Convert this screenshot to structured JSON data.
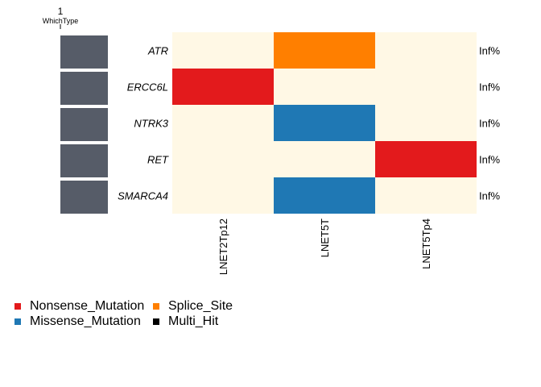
{
  "chart_data": {
    "type": "heatmap",
    "annotation": {
      "tick": "1",
      "label": "WhichType",
      "color": "#565c68"
    },
    "genes": [
      "ATR",
      "ERCC6L",
      "NTRK3",
      "RET",
      "SMARCA4"
    ],
    "samples": [
      "LNET2Tp12",
      "LNET5T",
      "LNET5Tp4"
    ],
    "row_labels_right": [
      "Inf%",
      "Inf%",
      "Inf%",
      "Inf%",
      "Inf%"
    ],
    "cells": [
      [
        "",
        "Splice_Site",
        ""
      ],
      [
        "Nonsense_Mutation",
        "",
        ""
      ],
      [
        "",
        "Missense_Mutation",
        ""
      ],
      [
        "",
        "",
        "Nonsense_Mutation"
      ],
      [
        "",
        "Missense_Mutation",
        ""
      ]
    ],
    "background_color": "#fff8e5",
    "legend": [
      {
        "label": "Nonsense_Mutation",
        "color": "#e31a1c"
      },
      {
        "label": "Splice_Site",
        "color": "#ff7f00"
      },
      {
        "label": "Missense_Mutation",
        "color": "#1f78b4"
      },
      {
        "label": "Multi_Hit",
        "color": "#000000"
      }
    ]
  }
}
